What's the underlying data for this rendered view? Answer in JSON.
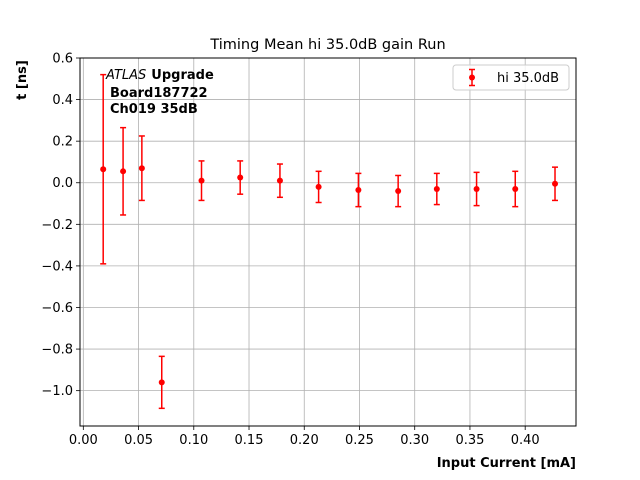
{
  "chart_data": {
    "type": "scatter",
    "title": "Timing Mean hi 35.0dB gain Run",
    "xlabel": "Input Current [mA]",
    "ylabel": "t [ns]",
    "xlim": [
      -0.003,
      0.446
    ],
    "ylim": [
      -1.17,
      0.6
    ],
    "xticks": [
      0.0,
      0.05,
      0.1,
      0.15,
      0.2,
      0.25,
      0.3,
      0.35,
      0.4
    ],
    "xtick_labels": [
      "0.00",
      "0.05",
      "0.10",
      "0.15",
      "0.20",
      "0.25",
      "0.30",
      "0.35",
      "0.40"
    ],
    "yticks": [
      -1.0,
      -0.8,
      -0.6,
      -0.4,
      -0.2,
      0.0,
      0.2,
      0.4,
      0.6
    ],
    "ytick_labels": [
      "−1.0",
      "−0.8",
      "−0.6",
      "−0.4",
      "−0.2",
      "0.0",
      "0.2",
      "0.4",
      "0.6"
    ],
    "grid": true,
    "legend_position": "upper right",
    "color": "#ff0000",
    "annotation": {
      "italic_part": "ATLAS",
      "bold_part": "Upgrade",
      "line2": "Board187722",
      "line3": "Ch019 35dB"
    },
    "series": [
      {
        "name": "hi 35.0dB",
        "x": [
          0.018,
          0.036,
          0.053,
          0.071,
          0.107,
          0.142,
          0.178,
          0.213,
          0.249,
          0.285,
          0.32,
          0.356,
          0.391,
          0.427
        ],
        "y": [
          0.065,
          0.055,
          0.07,
          -0.96,
          0.01,
          0.025,
          0.01,
          -0.02,
          -0.035,
          -0.04,
          -0.03,
          -0.03,
          -0.03,
          -0.005
        ],
        "yerr": [
          0.455,
          0.21,
          0.155,
          0.125,
          0.095,
          0.08,
          0.08,
          0.075,
          0.08,
          0.075,
          0.075,
          0.08,
          0.085,
          0.08
        ]
      }
    ]
  }
}
